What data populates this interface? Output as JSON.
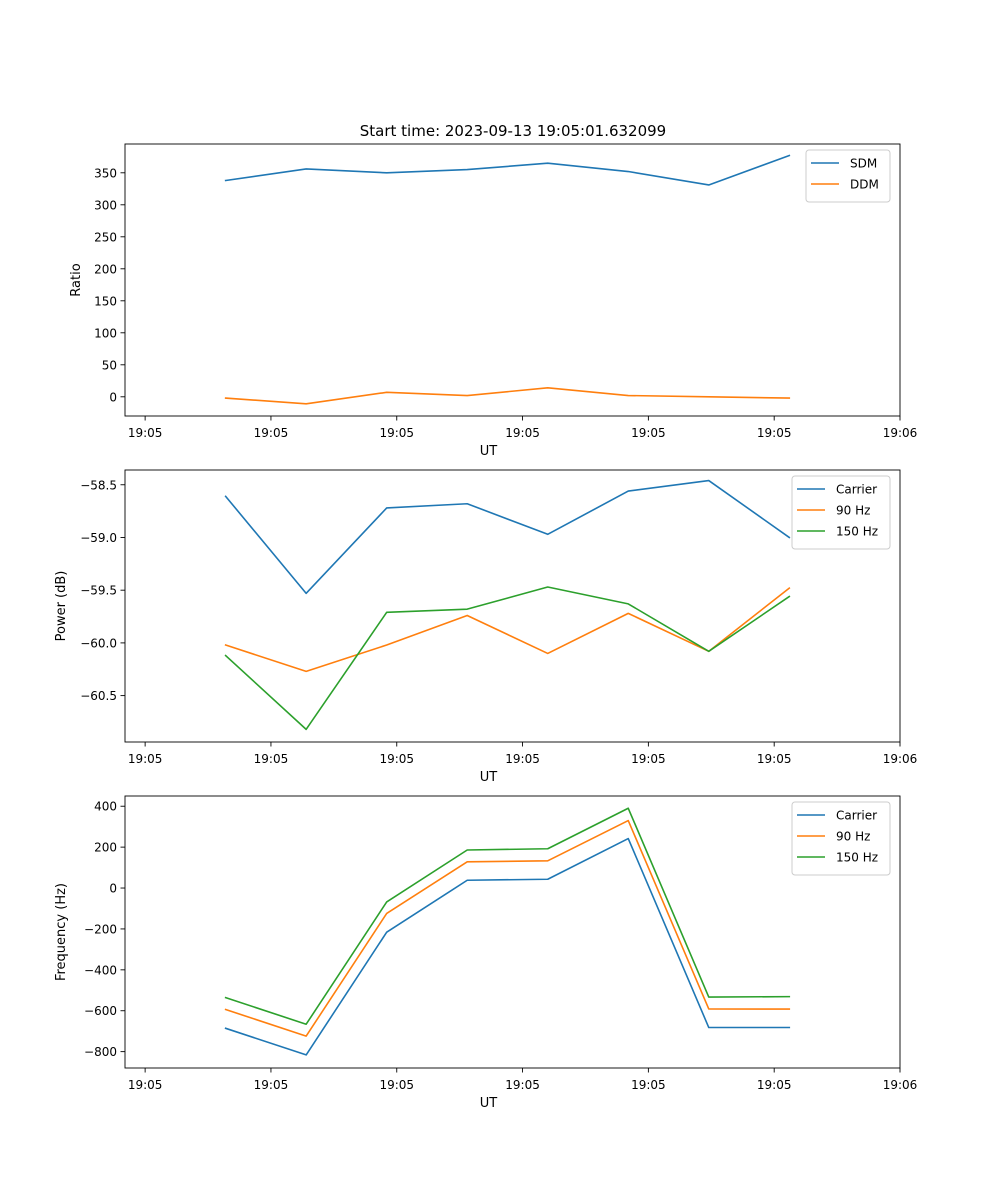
{
  "figure_title": "Start time: 2023-09-13 19:05:01.632099",
  "chart_data": [
    {
      "type": "line",
      "title": "Start time: 2023-09-13 19:05:01.632099",
      "xlabel": "UT",
      "ylabel": "Ratio",
      "x": [
        0.8,
        1.6,
        2.4,
        3.2,
        4.0,
        4.8,
        5.6,
        6.4
      ],
      "xlim": [
        -0.2,
        7.5
      ],
      "xticks": [
        0,
        1.25,
        2.5,
        3.75,
        5.0,
        6.25,
        7.5
      ],
      "xtick_labels": [
        "19:05",
        "19:05",
        "19:05",
        "19:05",
        "19:05",
        "19:05",
        "19:06"
      ],
      "ylim": [
        -30,
        395
      ],
      "yticks": [
        0,
        50,
        100,
        150,
        200,
        250,
        300,
        350
      ],
      "ytick_labels": [
        "0",
        "50",
        "100",
        "150",
        "200",
        "250",
        "300",
        "350"
      ],
      "legend": "top-right",
      "grid": false,
      "series": [
        {
          "name": "SDM",
          "color": "#1f77b4",
          "values": [
            338,
            356,
            350,
            355,
            365,
            352,
            331,
            377
          ]
        },
        {
          "name": "DDM",
          "color": "#ff7f0e",
          "values": [
            -2,
            -11,
            7,
            2,
            14,
            2,
            0,
            -2
          ]
        }
      ]
    },
    {
      "type": "line",
      "title": "",
      "xlabel": "UT",
      "ylabel": "Power (dB)",
      "x": [
        0.8,
        1.6,
        2.4,
        3.2,
        4.0,
        4.8,
        5.6,
        6.4
      ],
      "xlim": [
        -0.2,
        7.5
      ],
      "xticks": [
        0,
        1.25,
        2.5,
        3.75,
        5.0,
        6.25,
        7.5
      ],
      "xtick_labels": [
        "19:05",
        "19:05",
        "19:05",
        "19:05",
        "19:05",
        "19:05",
        "19:06"
      ],
      "ylim": [
        -60.94,
        -58.36
      ],
      "yticks": [
        -58.5,
        -59.0,
        -59.5,
        -60.0,
        -60.5
      ],
      "ytick_labels": [
        "−58.5",
        "−59.0",
        "−59.5",
        "−60.0",
        "−60.5"
      ],
      "legend": "top-right",
      "grid": false,
      "series": [
        {
          "name": "Carrier",
          "color": "#1f77b4",
          "values": [
            -58.61,
            -59.53,
            -58.72,
            -58.68,
            -58.97,
            -58.56,
            -58.46,
            -59.0
          ]
        },
        {
          "name": "90 Hz",
          "color": "#ff7f0e",
          "values": [
            -60.02,
            -60.27,
            -60.02,
            -59.74,
            -60.1,
            -59.72,
            -60.08,
            -59.48
          ]
        },
        {
          "name": "150 Hz",
          "color": "#2ca02c",
          "values": [
            -60.12,
            -60.82,
            -59.71,
            -59.68,
            -59.47,
            -59.63,
            -60.08,
            -59.56
          ]
        }
      ]
    },
    {
      "type": "line",
      "title": "",
      "xlabel": "UT",
      "ylabel": "Frequency (Hz)",
      "x": [
        0.8,
        1.6,
        2.4,
        3.2,
        4.0,
        4.8,
        5.6,
        6.4
      ],
      "xlim": [
        -0.2,
        7.5
      ],
      "xticks": [
        0,
        1.25,
        2.5,
        3.75,
        5.0,
        6.25,
        7.5
      ],
      "xtick_labels": [
        "19:05",
        "19:05",
        "19:05",
        "19:05",
        "19:05",
        "19:05",
        "19:06"
      ],
      "ylim": [
        -880,
        450
      ],
      "yticks": [
        400,
        200,
        0,
        -200,
        -400,
        -600,
        -800
      ],
      "ytick_labels": [
        "400",
        "200",
        "0",
        "−200",
        "−400",
        "−600",
        "−800"
      ],
      "legend": "top-right",
      "grid": false,
      "series": [
        {
          "name": "Carrier",
          "color": "#1f77b4",
          "values": [
            -686,
            -816,
            -216,
            38,
            43,
            242,
            -682,
            -682
          ]
        },
        {
          "name": "90 Hz",
          "color": "#ff7f0e",
          "values": [
            -594,
            -724,
            -124,
            128,
            133,
            330,
            -591,
            -592
          ]
        },
        {
          "name": "150 Hz",
          "color": "#2ca02c",
          "values": [
            -536,
            -666,
            -68,
            186,
            192,
            390,
            -533,
            -531
          ]
        }
      ]
    }
  ]
}
